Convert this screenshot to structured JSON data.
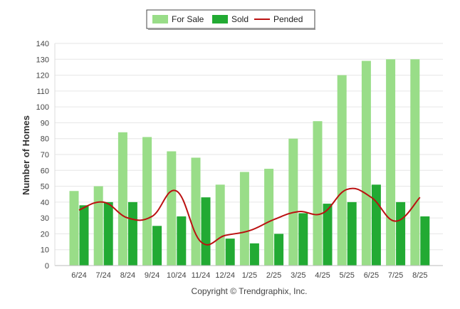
{
  "chart_data": {
    "type": "bar",
    "categories": [
      "6/24",
      "7/24",
      "8/24",
      "9/24",
      "10/24",
      "11/24",
      "12/24",
      "1/25",
      "2/25",
      "3/25",
      "4/25",
      "5/25",
      "6/25",
      "7/25",
      "8/25"
    ],
    "series": [
      {
        "name": "For Sale",
        "type": "bar",
        "color": "#99dd88",
        "values": [
          47,
          50,
          84,
          81,
          72,
          68,
          51,
          59,
          61,
          80,
          91,
          120,
          129,
          130,
          130
        ]
      },
      {
        "name": "Sold",
        "type": "bar",
        "color": "#22aa33",
        "values": [
          38,
          40,
          40,
          25,
          31,
          43,
          17,
          14,
          20,
          33,
          39,
          40,
          51,
          40,
          31
        ]
      },
      {
        "name": "Pended",
        "type": "line",
        "color": "#bb1111",
        "values": [
          35,
          40,
          30,
          31,
          47,
          15,
          19,
          22,
          29,
          34,
          33,
          48,
          43,
          28,
          43
        ]
      }
    ],
    "ylabel": "Number of Homes",
    "xlabel": "",
    "ylim": [
      0,
      140
    ],
    "yticks": [
      0,
      10,
      20,
      30,
      40,
      50,
      60,
      70,
      80,
      90,
      100,
      110,
      120,
      130,
      140
    ],
    "grid": true,
    "legend_position": "top-center",
    "credit": "Copyright © Trendgraphix, Inc."
  }
}
